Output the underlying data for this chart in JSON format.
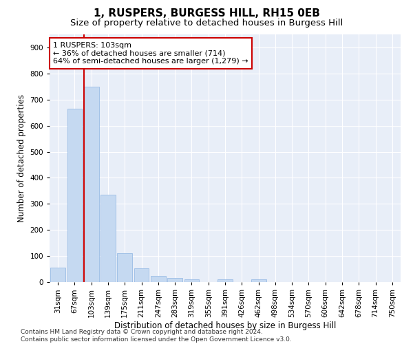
{
  "title": "1, RUSPERS, BURGESS HILL, RH15 0EB",
  "subtitle": "Size of property relative to detached houses in Burgess Hill",
  "xlabel": "Distribution of detached houses by size in Burgess Hill",
  "ylabel": "Number of detached properties",
  "categories": [
    "31sqm",
    "67sqm",
    "103sqm",
    "139sqm",
    "175sqm",
    "211sqm",
    "247sqm",
    "283sqm",
    "319sqm",
    "355sqm",
    "391sqm",
    "426sqm",
    "462sqm",
    "498sqm",
    "534sqm",
    "570sqm",
    "606sqm",
    "642sqm",
    "678sqm",
    "714sqm",
    "750sqm"
  ],
  "values": [
    55,
    665,
    750,
    335,
    110,
    53,
    25,
    16,
    10,
    0,
    10,
    0,
    10,
    0,
    0,
    0,
    0,
    0,
    0,
    0,
    0
  ],
  "bar_color": "#c5d9f1",
  "bar_edge_color": "#8db4e2",
  "vline_x": 2,
  "vline_color": "#cc0000",
  "annotation_text": "1 RUSPERS: 103sqm\n← 36% of detached houses are smaller (714)\n64% of semi-detached houses are larger (1,279) →",
  "annotation_box_color": "#ffffff",
  "annotation_box_edge": "#cc0000",
  "ylim": [
    0,
    950
  ],
  "yticks": [
    0,
    100,
    200,
    300,
    400,
    500,
    600,
    700,
    800,
    900
  ],
  "background_color": "#e8eef8",
  "grid_color": "#ffffff",
  "footer_line1": "Contains HM Land Registry data © Crown copyright and database right 2024.",
  "footer_line2": "Contains public sector information licensed under the Open Government Licence v3.0.",
  "title_fontsize": 11,
  "subtitle_fontsize": 9.5,
  "xlabel_fontsize": 8.5,
  "ylabel_fontsize": 8.5,
  "tick_fontsize": 7.5,
  "footer_fontsize": 6.5,
  "annotation_fontsize": 8
}
